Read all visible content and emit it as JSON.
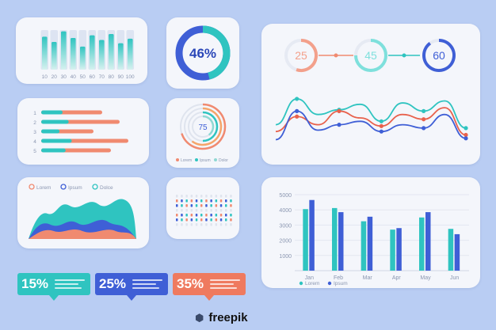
{
  "colors": {
    "teal": "#2fc4c0",
    "teal_light": "#7ee0dc",
    "blue": "#3f5fd6",
    "coral": "#ef7a5f",
    "orange": "#f59a4a",
    "red": "#e8614c",
    "bg": "#b9cdf3"
  },
  "chart_data": [
    {
      "type": "bar",
      "id": "bars_topleft",
      "categories": [
        "10",
        "20",
        "30",
        "40",
        "50",
        "60",
        "70",
        "80",
        "90",
        "100"
      ],
      "values": [
        50,
        42,
        58,
        48,
        35,
        52,
        45,
        54,
        40,
        47
      ],
      "ylim": [
        0,
        60
      ]
    },
    {
      "type": "donut",
      "id": "donut_46",
      "value": 46,
      "label": "46%"
    },
    {
      "type": "gauges",
      "id": "gauges",
      "items": [
        {
          "value": 25,
          "label": "25"
        },
        {
          "value": 45,
          "label": "45"
        },
        {
          "value": 60,
          "label": "60"
        }
      ]
    },
    {
      "type": "line",
      "id": "waves",
      "x": [
        0,
        1,
        2,
        3,
        4,
        5,
        6,
        7,
        8,
        9
      ],
      "series": [
        {
          "values": [
            40,
            78,
            55,
            62,
            70,
            45,
            72,
            60,
            75,
            35
          ]
        },
        {
          "values": [
            30,
            52,
            40,
            60,
            50,
            38,
            55,
            48,
            65,
            25
          ]
        },
        {
          "values": [
            18,
            60,
            32,
            40,
            45,
            30,
            40,
            35,
            55,
            20
          ]
        }
      ],
      "ylim": [
        0,
        100
      ]
    },
    {
      "type": "bar_horizontal",
      "id": "hbars",
      "categories": [
        "1",
        "2",
        "3",
        "4",
        "5"
      ],
      "values": [
        70,
        90,
        60,
        100,
        80
      ]
    },
    {
      "type": "radial",
      "id": "radial_75",
      "value": 75,
      "label": "75",
      "legend": [
        "Lorem",
        "Ipsum",
        "Dolor"
      ]
    },
    {
      "type": "area",
      "id": "area_waves",
      "legend": [
        "Lorem",
        "Ipsum",
        "Dolce"
      ]
    },
    {
      "type": "bar",
      "id": "dotbars",
      "categories": [
        "1",
        "2",
        "3",
        "4",
        "5",
        "6",
        "7",
        "8",
        "9",
        "10",
        "11",
        "12"
      ]
    },
    {
      "type": "bar",
      "id": "bars_bottomright",
      "categories": [
        "Jan",
        "Feb",
        "Mar",
        "Apr",
        "May",
        "Jun"
      ],
      "series": [
        {
          "name": "Lorem",
          "values": [
            4050,
            4120,
            3250,
            2700,
            3500,
            2750
          ]
        },
        {
          "name": "Ipsum",
          "values": [
            4650,
            3850,
            3550,
            2800,
            3850,
            2400
          ]
        }
      ],
      "yticks": [
        "1000",
        "2000",
        "3000",
        "4000",
        "5000"
      ],
      "ylim": [
        0,
        5000
      ]
    }
  ],
  "badges": [
    {
      "label": "15%"
    },
    {
      "label": "25%"
    },
    {
      "label": "35%"
    }
  ],
  "brand": {
    "text": "freepik"
  }
}
